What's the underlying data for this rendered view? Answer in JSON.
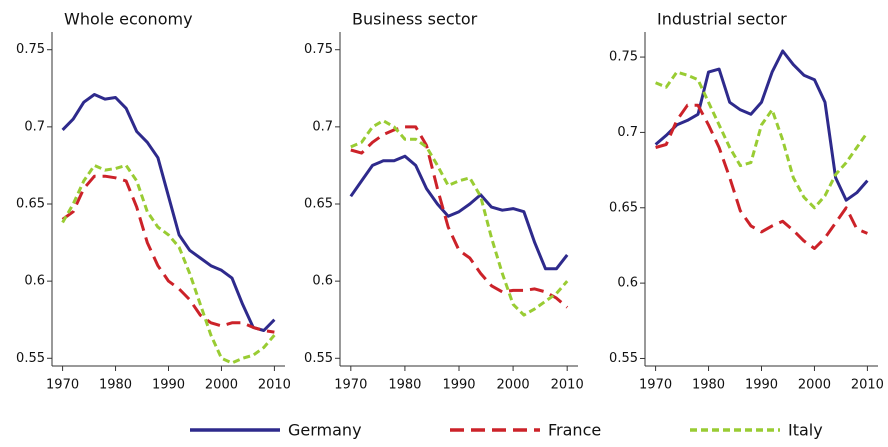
{
  "chart_data": [
    {
      "type": "line",
      "title": "Whole economy",
      "x": [
        1970,
        1972,
        1974,
        1976,
        1978,
        1980,
        1982,
        1984,
        1986,
        1988,
        1990,
        1992,
        1994,
        1996,
        1998,
        2000,
        2002,
        2004,
        2006,
        2008,
        2010
      ],
      "xlim": [
        1968,
        2012
      ],
      "xticks": [
        1970,
        1980,
        1990,
        2000,
        2010
      ],
      "ylim": [
        0.545,
        0.755
      ],
      "yticks": [
        0.55,
        0.6,
        0.65,
        0.7,
        0.75
      ],
      "series": [
        {
          "name": "Germany",
          "color": "#2e2a8c",
          "values": [
            0.698,
            0.705,
            0.716,
            0.721,
            0.718,
            0.719,
            0.712,
            0.697,
            0.69,
            0.68,
            0.655,
            0.63,
            0.62,
            0.615,
            0.61,
            0.607,
            0.602,
            0.585,
            0.57,
            0.568,
            0.575
          ]
        },
        {
          "name": "France",
          "color": "#cc2229",
          "values": [
            0.64,
            0.645,
            0.66,
            0.668,
            0.668,
            0.667,
            0.665,
            0.648,
            0.625,
            0.61,
            0.6,
            0.595,
            0.588,
            0.578,
            0.573,
            0.571,
            0.573,
            0.573,
            0.57,
            0.568,
            0.567
          ]
        },
        {
          "name": "Italy",
          "color": "#99cc33",
          "values": [
            0.638,
            0.65,
            0.665,
            0.675,
            0.672,
            0.673,
            0.675,
            0.665,
            0.645,
            0.635,
            0.63,
            0.622,
            0.605,
            0.585,
            0.565,
            0.55,
            0.547,
            0.55,
            0.552,
            0.557,
            0.565
          ]
        }
      ]
    },
    {
      "type": "line",
      "title": "Business sector",
      "x": [
        1970,
        1972,
        1974,
        1976,
        1978,
        1980,
        1982,
        1984,
        1986,
        1988,
        1990,
        1992,
        1994,
        1996,
        1998,
        2000,
        2002,
        2004,
        2006,
        2008,
        2010
      ],
      "xlim": [
        1968,
        2012
      ],
      "xticks": [
        1970,
        1980,
        1990,
        2000,
        2010
      ],
      "ylim": [
        0.545,
        0.755
      ],
      "yticks": [
        0.55,
        0.6,
        0.65,
        0.7,
        0.75
      ],
      "series": [
        {
          "color": "#2e2a8c",
          "values": [
            0.655,
            0.665,
            0.675,
            0.678,
            0.678,
            0.681,
            0.675,
            0.66,
            0.65,
            0.642,
            0.645,
            0.65,
            0.656,
            0.648,
            0.646,
            0.647,
            0.645,
            0.625,
            0.608,
            0.608,
            0.617
          ]
        },
        {
          "color": "#cc2229",
          "values": [
            0.685,
            0.683,
            0.69,
            0.695,
            0.698,
            0.7,
            0.7,
            0.688,
            0.66,
            0.635,
            0.62,
            0.615,
            0.605,
            0.597,
            0.593,
            0.594,
            0.594,
            0.595,
            0.593,
            0.589,
            0.583
          ]
        },
        {
          "color": "#99cc33",
          "values": [
            0.687,
            0.69,
            0.7,
            0.704,
            0.7,
            0.692,
            0.692,
            0.687,
            0.675,
            0.662,
            0.665,
            0.667,
            0.655,
            0.628,
            0.605,
            0.585,
            0.578,
            0.582,
            0.587,
            0.592,
            0.6
          ]
        }
      ]
    },
    {
      "type": "line",
      "title": "Industrial sector",
      "x": [
        1970,
        1972,
        1974,
        1976,
        1978,
        1980,
        1982,
        1984,
        1986,
        1988,
        1990,
        1992,
        1994,
        1996,
        1998,
        2000,
        2002,
        2004,
        2006,
        2008,
        2010
      ],
      "xlim": [
        1968,
        2012
      ],
      "xticks": [
        1970,
        1980,
        1990,
        2000,
        2010
      ],
      "ylim": [
        0.545,
        0.76
      ],
      "yticks": [
        0.55,
        0.6,
        0.65,
        0.7,
        0.75
      ],
      "series": [
        {
          "color": "#2e2a8c",
          "values": [
            0.692,
            0.698,
            0.705,
            0.708,
            0.712,
            0.74,
            0.742,
            0.72,
            0.715,
            0.712,
            0.72,
            0.74,
            0.754,
            0.745,
            0.738,
            0.735,
            0.72,
            0.67,
            0.655,
            0.66,
            0.668
          ]
        },
        {
          "color": "#cc2229",
          "values": [
            0.69,
            0.692,
            0.708,
            0.718,
            0.718,
            0.705,
            0.69,
            0.67,
            0.648,
            0.638,
            0.634,
            0.638,
            0.641,
            0.635,
            0.628,
            0.623,
            0.63,
            0.64,
            0.65,
            0.636,
            0.633
          ]
        },
        {
          "color": "#99cc33",
          "values": [
            0.733,
            0.73,
            0.74,
            0.738,
            0.735,
            0.72,
            0.705,
            0.69,
            0.678,
            0.68,
            0.705,
            0.715,
            0.695,
            0.67,
            0.657,
            0.65,
            0.658,
            0.672,
            0.68,
            0.69,
            0.7
          ]
        }
      ]
    }
  ]
}
